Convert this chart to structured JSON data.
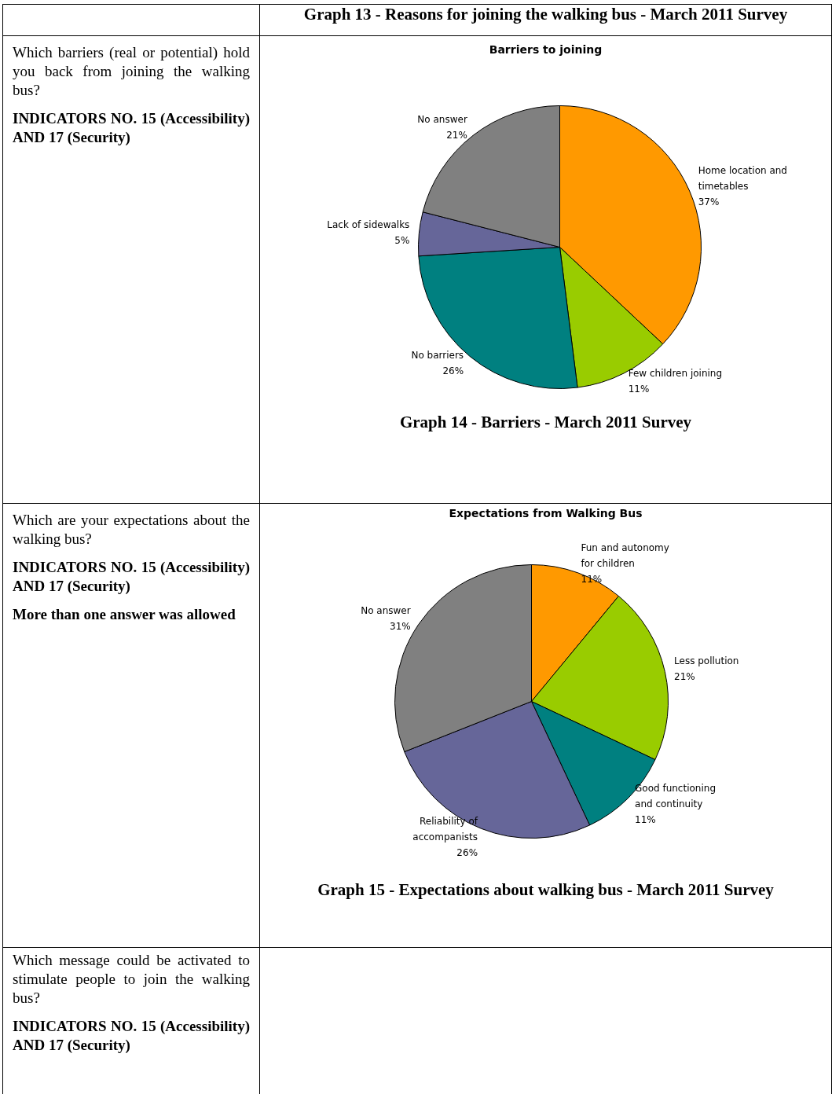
{
  "chart_data": [
    {
      "type": "pie",
      "title": "Barriers to joining",
      "categories": [
        "Home location and timetables",
        "Few children joining",
        "No barriers",
        "Lack of sidewalks",
        "No answer"
      ],
      "values": [
        37,
        11,
        26,
        5,
        21
      ],
      "colors": [
        "#ff9900",
        "#99cc00",
        "#008080",
        "#666699",
        "#808080"
      ],
      "value_labels": [
        "37%",
        "11%",
        "26%",
        "5%",
        "21%"
      ],
      "legend": false,
      "annotations": [
        "Graph 13 - Reasons for joining the walking bus - March 2011 Survey",
        "Which barriers (real or potential) hold you back from joining the walking bus?",
        "INDICATORS NO. 15 (Accessibility) AND 17 (Security)",
        "Graph 14 - Barriers - March 2011 Survey"
      ]
    },
    {
      "type": "pie",
      "title": "Expectations from Walking Bus",
      "categories": [
        "Fun and autonomy for children",
        "Less pollution",
        "Good functioning and continuity",
        "Reliability of accompanists",
        "No answer"
      ],
      "values": [
        11,
        21,
        11,
        26,
        31
      ],
      "colors": [
        "#ff9900",
        "#99cc00",
        "#008080",
        "#666699",
        "#808080"
      ],
      "value_labels": [
        "11%",
        "21%",
        "11%",
        "26%",
        "31%"
      ],
      "legend": false,
      "annotations": [
        "Which are your expectations about the walking bus?",
        "INDICATORS NO. 15 (Accessibility) AND 17 (Security)",
        "More than one answer was allowed",
        "Graph 15 - Expectations about walking bus - March 2011 Survey",
        "Which message could be activated to stimulate people to join the walking bus?",
        "INDICATORS NO. 15 (Accessibility) AND 17 (Security)"
      ]
    }
  ]
}
